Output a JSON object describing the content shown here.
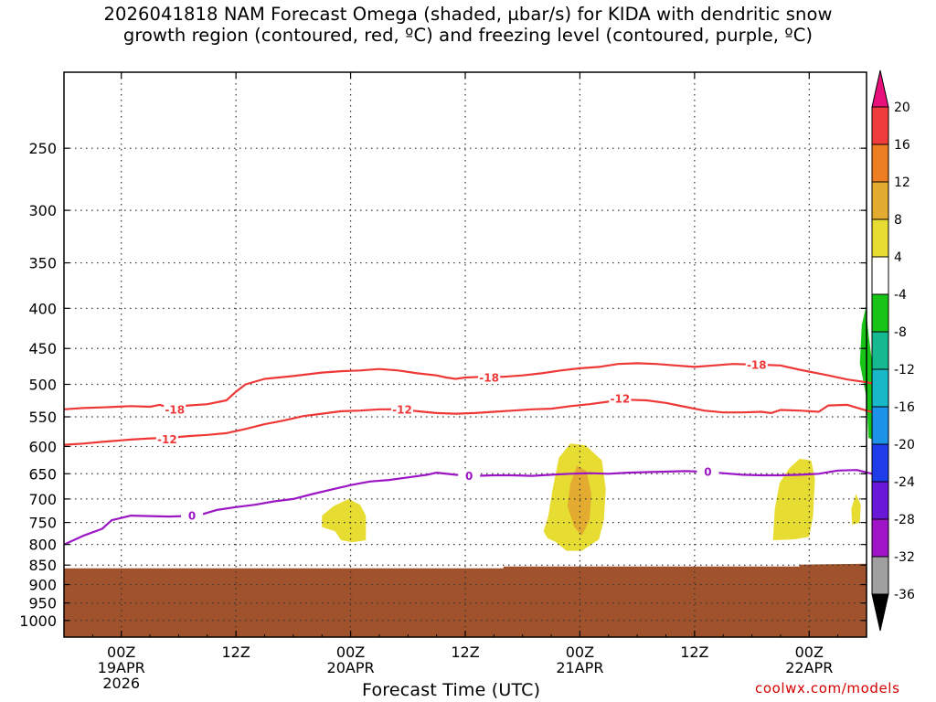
{
  "title": {
    "line1": "2026041818 NAM Forecast Omega (shaded, µbar/s) for KIDA with dendritic snow",
    "line2": "growth region (contoured, red, ºC) and freezing level (contoured, purple, ºC)"
  },
  "credit": "coolwx.com/models",
  "chart_data": {
    "type": "heatmap",
    "xlabel": "Forecast Time (UTC)",
    "ylabel": "",
    "x_range_hours": [
      0,
      84
    ],
    "y_scale": "log-pressure",
    "y_range": [
      200,
      1050
    ],
    "y_ticks": [
      250,
      300,
      350,
      400,
      450,
      500,
      550,
      600,
      650,
      700,
      750,
      800,
      850,
      900,
      950,
      1000
    ],
    "y_tick_labels": [
      "250",
      "300",
      "350",
      "400",
      "450",
      "500",
      "550",
      "600",
      "650",
      "700",
      "750",
      "800",
      "850",
      "900",
      "950",
      "1000"
    ],
    "x_ticks": [
      {
        "hour": 6,
        "line1": "00Z",
        "line2": "19APR",
        "line3": "2026"
      },
      {
        "hour": 18,
        "line1": "12Z",
        "line2": "",
        "line3": ""
      },
      {
        "hour": 30,
        "line1": "00Z",
        "line2": "20APR",
        "line3": ""
      },
      {
        "hour": 42,
        "line1": "12Z",
        "line2": "",
        "line3": ""
      },
      {
        "hour": 54,
        "line1": "00Z",
        "line2": "21APR",
        "line3": ""
      },
      {
        "hour": 66,
        "line1": "12Z",
        "line2": "",
        "line3": ""
      },
      {
        "hour": 78,
        "line1": "00Z",
        "line2": "22APR",
        "line3": ""
      }
    ],
    "grid": true,
    "colorbar": {
      "levels": [
        "20",
        "16",
        "12",
        "8",
        "4",
        "-4",
        "-8",
        "-12",
        "-16",
        "-20",
        "-24",
        "-28",
        "-32",
        "-36"
      ],
      "colors": [
        "#e8107a",
        "#f03c3c",
        "#ee7e22",
        "#e3ab30",
        "#e7dd32",
        "#ffffff",
        "#18c418",
        "#16b890",
        "#18b8c8",
        "#1c92e8",
        "#1e3ce8",
        "#6a18d8",
        "#a014c8",
        "#a0a0a0",
        "#000000"
      ]
    },
    "omega_regions": [
      {
        "name": "omega-20apr",
        "level": "4",
        "color": "#e7dd32",
        "points": [
          [
            27.0,
            760
          ],
          [
            27.0,
            735
          ],
          [
            28.2,
            715
          ],
          [
            29.8,
            700
          ],
          [
            31.0,
            712
          ],
          [
            31.6,
            735
          ],
          [
            31.6,
            790
          ],
          [
            30.2,
            795
          ],
          [
            29.0,
            790
          ],
          [
            28.4,
            770
          ]
        ]
      },
      {
        "name": "omega-21apr",
        "level": "4",
        "color": "#e7dd32",
        "points": [
          [
            50.2,
            770
          ],
          [
            50.7,
            735
          ],
          [
            51.1,
            685
          ],
          [
            51.8,
            620
          ],
          [
            53.0,
            595
          ],
          [
            54.6,
            598
          ],
          [
            56.3,
            625
          ],
          [
            56.7,
            680
          ],
          [
            56.5,
            745
          ],
          [
            56.0,
            788
          ],
          [
            54.2,
            815
          ],
          [
            52.6,
            815
          ],
          [
            51.5,
            795
          ],
          [
            50.6,
            785
          ]
        ]
      },
      {
        "name": "omega-21apr-core",
        "level": "8",
        "color": "#e3ab30",
        "points": [
          [
            52.7,
            715
          ],
          [
            53.0,
            670
          ],
          [
            53.7,
            635
          ],
          [
            54.7,
            645
          ],
          [
            55.2,
            690
          ],
          [
            55.0,
            745
          ],
          [
            54.2,
            780
          ],
          [
            53.4,
            760
          ]
        ]
      },
      {
        "name": "omega-22apr",
        "level": "4",
        "color": "#e7dd32",
        "points": [
          [
            74.2,
            790
          ],
          [
            74.4,
            720
          ],
          [
            74.9,
            668
          ],
          [
            75.9,
            640
          ],
          [
            77.0,
            622
          ],
          [
            78.2,
            625
          ],
          [
            78.6,
            660
          ],
          [
            78.4,
            735
          ],
          [
            78.0,
            782
          ],
          [
            76.5,
            788
          ]
        ]
      },
      {
        "name": "omega-22apr-small",
        "level": "4",
        "color": "#e7dd32",
        "points": [
          [
            82.5,
            755
          ],
          [
            82.4,
            720
          ],
          [
            82.9,
            690
          ],
          [
            83.4,
            712
          ],
          [
            83.3,
            750
          ]
        ]
      },
      {
        "name": "omega-sink-22apr",
        "level": "-4",
        "color": "#18c418",
        "points": [
          [
            83.3,
            470
          ],
          [
            83.5,
            420
          ],
          [
            83.9,
            400
          ],
          [
            84.3,
            440
          ],
          [
            84.7,
            480
          ],
          [
            85.0,
            550
          ],
          [
            85.0,
            590
          ],
          [
            84.2,
            585
          ],
          [
            84.0,
            520
          ]
        ]
      }
    ],
    "series": [
      {
        "name": "-18",
        "color": "#ee3838",
        "label_at": [
          [
            11.6,
            538
          ],
          [
            44.5,
            490
          ],
          [
            72.5,
            472
          ]
        ],
        "points": [
          [
            0,
            538
          ],
          [
            2,
            536
          ],
          [
            4,
            535
          ],
          [
            7,
            533
          ],
          [
            9,
            534
          ],
          [
            10,
            531
          ],
          [
            11,
            535
          ],
          [
            13,
            532
          ],
          [
            15,
            530
          ],
          [
            17,
            524
          ],
          [
            18,
            511
          ],
          [
            19,
            500
          ],
          [
            21,
            492
          ],
          [
            24,
            488
          ],
          [
            27,
            483
          ],
          [
            29,
            481
          ],
          [
            31,
            480
          ],
          [
            33,
            478
          ],
          [
            35,
            480
          ],
          [
            37,
            484
          ],
          [
            39,
            487
          ],
          [
            40,
            490
          ],
          [
            41,
            492
          ],
          [
            42,
            490
          ],
          [
            44,
            489
          ],
          [
            46,
            489
          ],
          [
            48,
            487
          ],
          [
            50,
            484
          ],
          [
            52,
            480
          ],
          [
            54,
            477
          ],
          [
            56,
            475
          ],
          [
            58,
            471
          ],
          [
            60,
            470
          ],
          [
            62,
            471
          ],
          [
            64,
            473
          ],
          [
            66,
            475
          ],
          [
            68,
            473
          ],
          [
            70,
            471
          ],
          [
            73,
            472
          ],
          [
            75,
            473
          ],
          [
            77,
            479
          ],
          [
            80,
            487
          ],
          [
            82,
            493
          ],
          [
            84,
            497
          ],
          [
            85,
            500
          ]
        ]
      },
      {
        "name": "-12",
        "color": "#ee3838",
        "label_at": [
          [
            10.8,
            587
          ],
          [
            35.4,
            538
          ],
          [
            58.2,
            521
          ]
        ],
        "points": [
          [
            0,
            597
          ],
          [
            2,
            595
          ],
          [
            4,
            592
          ],
          [
            7,
            588
          ],
          [
            9,
            586
          ],
          [
            11,
            585
          ],
          [
            13,
            582
          ],
          [
            15,
            580
          ],
          [
            17,
            577
          ],
          [
            19,
            570
          ],
          [
            21,
            562
          ],
          [
            23,
            556
          ],
          [
            25,
            549
          ],
          [
            27,
            545
          ],
          [
            29,
            541
          ],
          [
            31,
            540
          ],
          [
            33,
            538
          ],
          [
            35,
            538
          ],
          [
            37,
            541
          ],
          [
            39,
            544
          ],
          [
            41,
            545
          ],
          [
            43,
            544
          ],
          [
            45,
            542
          ],
          [
            47,
            540
          ],
          [
            49,
            538
          ],
          [
            51,
            537
          ],
          [
            53,
            533
          ],
          [
            55,
            530
          ],
          [
            57,
            526
          ],
          [
            59,
            523
          ],
          [
            61,
            524
          ],
          [
            63,
            528
          ],
          [
            65,
            534
          ],
          [
            67,
            540
          ],
          [
            69,
            543
          ],
          [
            71,
            543
          ],
          [
            73,
            542
          ],
          [
            74,
            544
          ],
          [
            75,
            539
          ],
          [
            77,
            540
          ],
          [
            79,
            542
          ],
          [
            80,
            532
          ],
          [
            82,
            531
          ],
          [
            84,
            540
          ],
          [
            85,
            544
          ]
        ]
      },
      {
        "name": "0",
        "color": "#9b16c4",
        "label_at": [
          [
            13.4,
            735
          ],
          [
            42.4,
            654
          ],
          [
            67.4,
            646
          ]
        ],
        "points": [
          [
            0,
            800
          ],
          [
            2,
            780
          ],
          [
            4,
            764
          ],
          [
            5,
            745
          ],
          [
            7,
            735
          ],
          [
            9,
            736
          ],
          [
            11,
            737
          ],
          [
            14,
            735
          ],
          [
            16,
            723
          ],
          [
            18,
            717
          ],
          [
            20,
            712
          ],
          [
            22,
            705
          ],
          [
            24,
            700
          ],
          [
            26,
            690
          ],
          [
            28,
            681
          ],
          [
            30,
            672
          ],
          [
            32,
            665
          ],
          [
            34,
            662
          ],
          [
            36,
            657
          ],
          [
            38,
            652
          ],
          [
            39,
            648
          ],
          [
            41,
            652
          ],
          [
            43,
            654
          ],
          [
            45,
            653
          ],
          [
            47,
            653
          ],
          [
            49,
            654
          ],
          [
            51,
            652
          ],
          [
            53,
            650
          ],
          [
            55,
            649
          ],
          [
            57,
            650
          ],
          [
            59,
            648
          ],
          [
            61,
            647
          ],
          [
            63,
            646
          ],
          [
            65,
            645
          ],
          [
            67,
            646
          ],
          [
            69,
            649
          ],
          [
            71,
            652
          ],
          [
            73,
            653
          ],
          [
            75,
            653
          ],
          [
            77,
            652
          ],
          [
            79,
            650
          ],
          [
            81,
            644
          ],
          [
            83,
            643
          ],
          [
            85,
            652
          ]
        ]
      }
    ]
  }
}
